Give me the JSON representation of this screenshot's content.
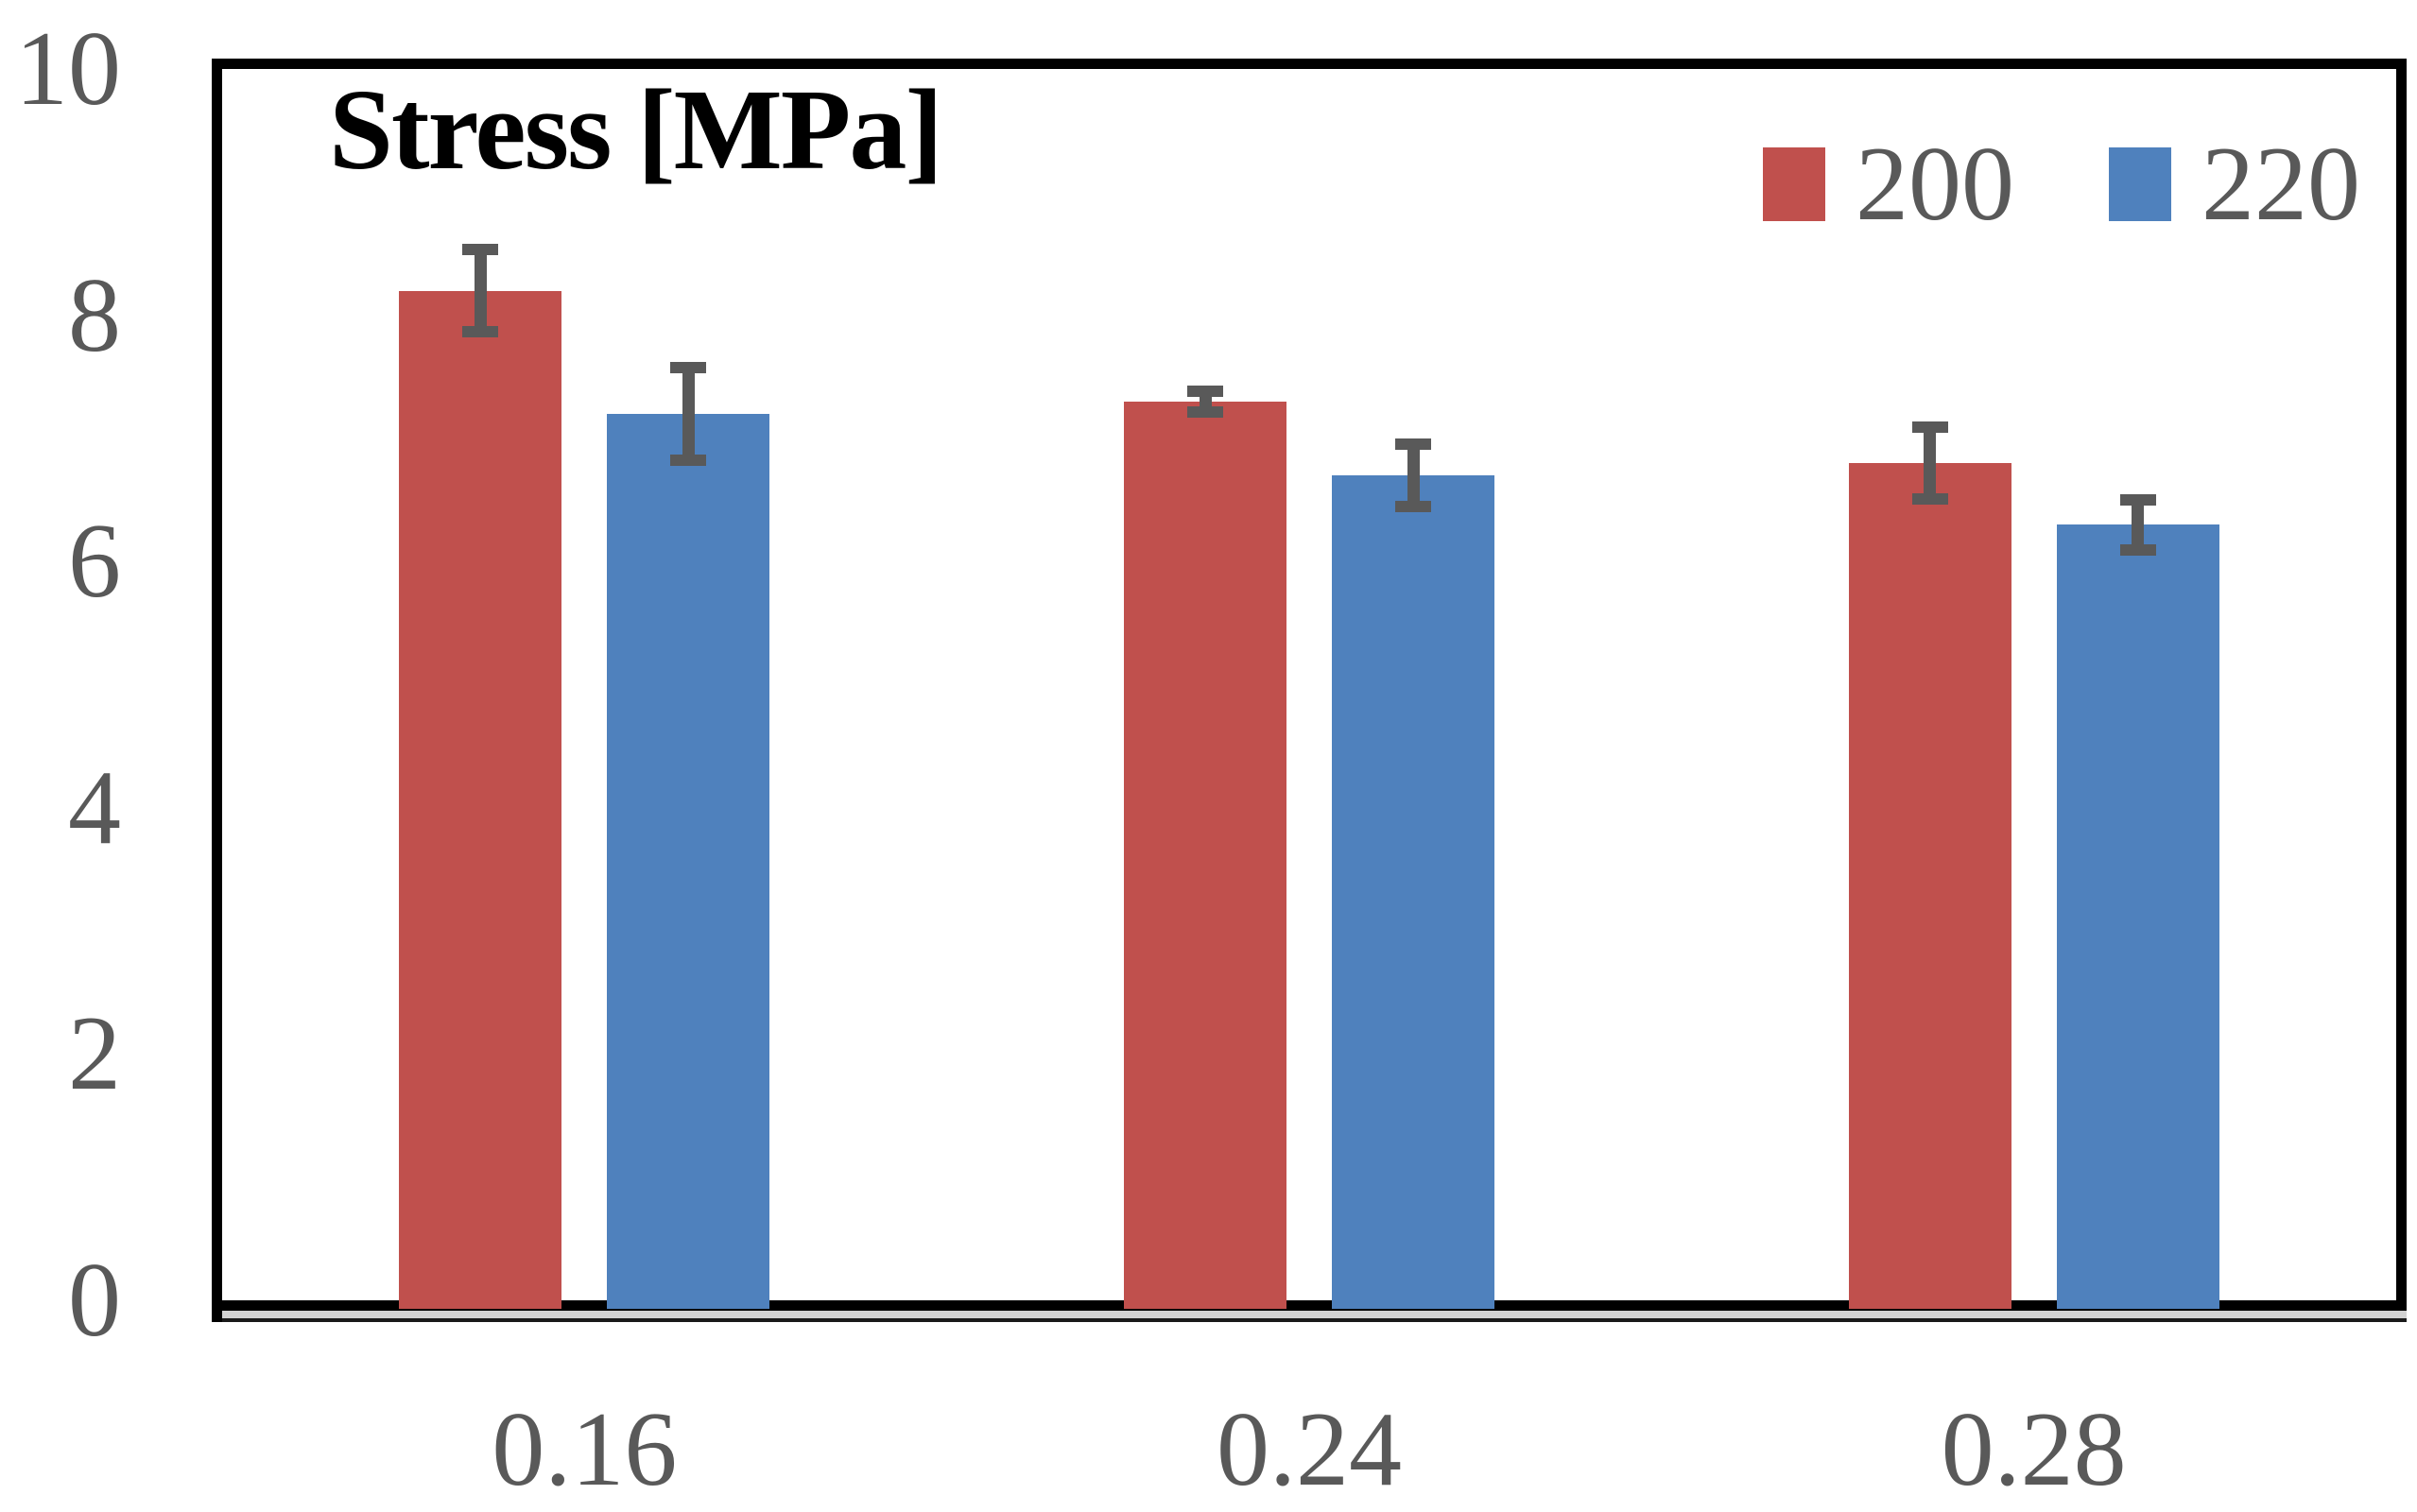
{
  "chart_data": {
    "type": "bar",
    "title": "Stress [MPa]",
    "categories": [
      "0.16",
      "0.24",
      "0.28"
    ],
    "series": [
      {
        "name": "200",
        "color": "#C0504D",
        "values": [
          8.2,
          7.3,
          6.8
        ],
        "errors": [
          0.38,
          0.13,
          0.34
        ]
      },
      {
        "name": "220",
        "color": "#4F81BD",
        "values": [
          7.2,
          6.7,
          6.3
        ],
        "errors": [
          0.42,
          0.3,
          0.25
        ]
      }
    ],
    "ylim": [
      0,
      10
    ],
    "yticks": [
      0,
      2,
      4,
      6,
      8,
      10
    ],
    "grid": false,
    "legend_position": "top-right-inside",
    "colors": {
      "axis_text": "#595959",
      "error_bar": "#595959",
      "plot_border": "#000000",
      "title_text": "#000000",
      "axis_shadow": "#D2D2D2",
      "axis_shadow_line": "#1a1a1a",
      "background": "#FFFFFF"
    }
  }
}
